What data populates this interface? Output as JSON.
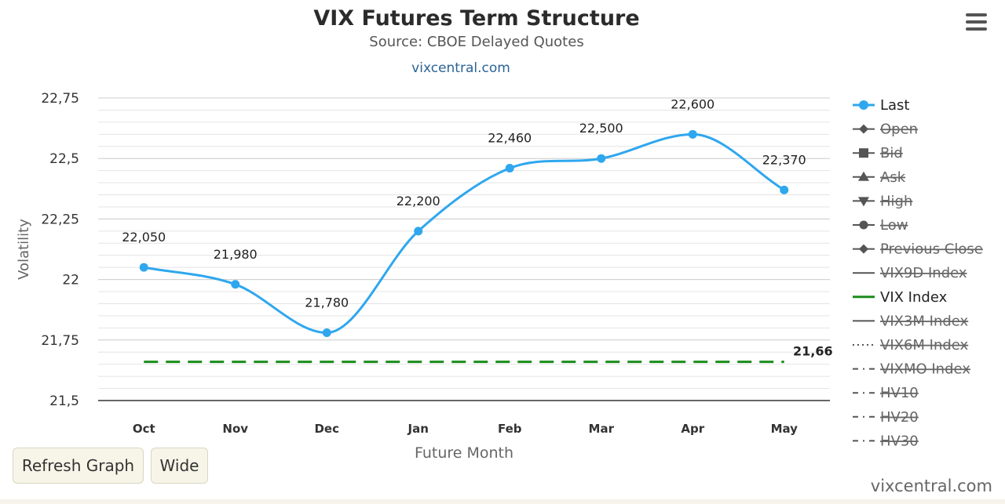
{
  "header": {
    "title": "VIX Futures Term Structure",
    "subtitle": "Source: CBOE Delayed Quotes",
    "link": "vixcentral.com"
  },
  "menu": {
    "icon": "hamburger-menu-icon"
  },
  "buttons": {
    "refresh": "Refresh Graph",
    "wide": "Wide"
  },
  "credit": "vixcentral.com",
  "chart_data": {
    "type": "line",
    "title": "VIX Futures Term Structure",
    "subtitle": "Source: CBOE Delayed Quotes",
    "xlabel": "Future Month",
    "ylabel": "Volatility",
    "categories": [
      "Oct",
      "Nov",
      "Dec",
      "Jan",
      "Feb",
      "Mar",
      "Apr",
      "May"
    ],
    "ylim": [
      21.5,
      22.75
    ],
    "yticks": [
      21.5,
      21.75,
      22,
      22.25,
      22.5,
      22.75
    ],
    "ytick_labels": [
      "21,5",
      "21,75",
      "22",
      "22,25",
      "22,5",
      "22,75"
    ],
    "grid": true,
    "legend_position": "right",
    "series": [
      {
        "name": "Last",
        "style": "smooth-line",
        "color": "#2fa7ee",
        "values": [
          22.05,
          21.98,
          21.78,
          22.2,
          22.46,
          22.5,
          22.6,
          22.37
        ],
        "data_labels": [
          "22,050",
          "21,980",
          "21,780",
          "22,200",
          "22,460",
          "22,500",
          "22,600",
          "22,370"
        ]
      },
      {
        "name": "VIX Index",
        "style": "dashed",
        "color": "#1a8c1a",
        "values": [
          21.66,
          21.66,
          21.66,
          21.66,
          21.66,
          21.66,
          21.66,
          21.66
        ],
        "end_label": "21,66"
      }
    ],
    "legend": [
      {
        "name": "Last",
        "symbol": "circle",
        "active": true,
        "color": "#2fa7ee"
      },
      {
        "name": "Open",
        "symbol": "diamond",
        "active": false,
        "color": "#555555"
      },
      {
        "name": "Bid",
        "symbol": "square",
        "active": false,
        "color": "#555555"
      },
      {
        "name": "Ask",
        "symbol": "triangle",
        "active": false,
        "color": "#555555"
      },
      {
        "name": "High",
        "symbol": "triangle-down",
        "active": false,
        "color": "#555555"
      },
      {
        "name": "Low",
        "symbol": "circle",
        "active": false,
        "color": "#555555"
      },
      {
        "name": "Previous Close",
        "symbol": "diamond",
        "active": false,
        "color": "#555555"
      },
      {
        "name": "VIX9D Index",
        "symbol": "line",
        "active": false,
        "color": "#555555"
      },
      {
        "name": "VIX Index",
        "symbol": "line",
        "active": true,
        "color": "#1a8c1a"
      },
      {
        "name": "VIX3M Index",
        "symbol": "line",
        "active": false,
        "color": "#555555"
      },
      {
        "name": "VIX6M Index",
        "symbol": "dotted",
        "active": false,
        "color": "#555555"
      },
      {
        "name": "VIXMO Index",
        "symbol": "dashdot",
        "active": false,
        "color": "#555555"
      },
      {
        "name": "HV10",
        "symbol": "dashdot",
        "active": false,
        "color": "#555555"
      },
      {
        "name": "HV20",
        "symbol": "dashdot",
        "active": false,
        "color": "#555555"
      },
      {
        "name": "HV30",
        "symbol": "dashdot",
        "active": false,
        "color": "#555555"
      }
    ]
  }
}
